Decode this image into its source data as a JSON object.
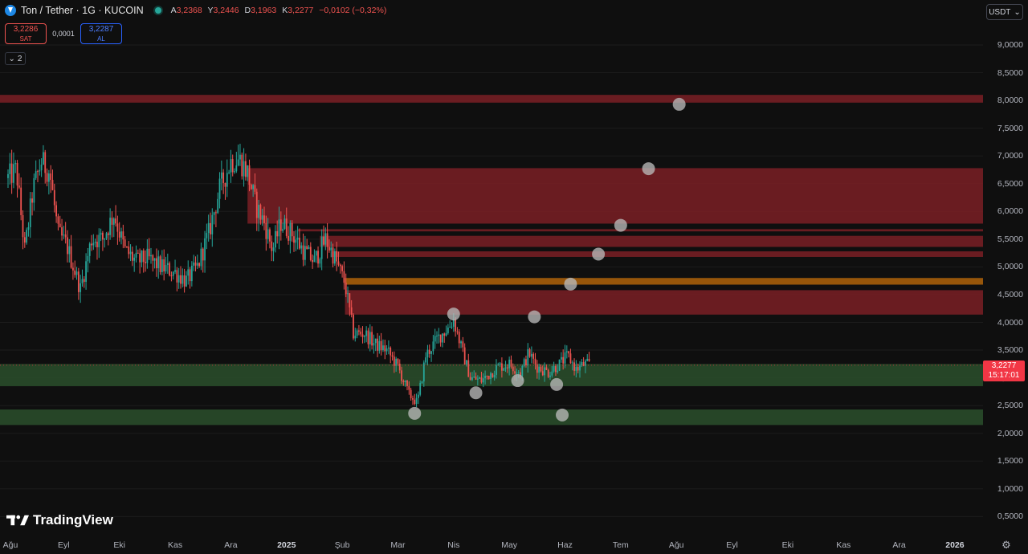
{
  "symbol": {
    "title": "Ton / Tether · 1G · KUCOIN",
    "ohlc": [
      {
        "key": "A",
        "value": "3,2368"
      },
      {
        "key": "Y",
        "value": "3,2446"
      },
      {
        "key": "D",
        "value": "3,1963"
      },
      {
        "key": "K",
        "value": "3,2277"
      }
    ],
    "change": "−0,0102 (−0,32%)"
  },
  "trade": {
    "sell_price": "3,2286",
    "sell_label": "SAT",
    "spread": "0,0001",
    "buy_price": "3,2287",
    "buy_label": "AL"
  },
  "indicators_count": "2",
  "currency": "USDT",
  "last_price": {
    "value": "3,2277",
    "countdown": "15:17:01"
  },
  "brand": "TradingView",
  "colors": {
    "up": "#26a69a",
    "down": "#ef5350",
    "background": "#0f0f0f",
    "resistance_zone": "#7a1f25",
    "support_zone": "#2a4f2c",
    "orange_zone": "#a65e0a",
    "marker": "#b8b8b8"
  },
  "chart_data": {
    "type": "candlestick",
    "ylim": [
      0.2,
      9.3
    ],
    "y_ticks": [
      "9,0000",
      "8,5000",
      "8,0000",
      "7,5000",
      "7,0000",
      "6,5000",
      "6,0000",
      "5,5000",
      "5,0000",
      "4,5000",
      "4,0000",
      "3,5000",
      "3,0000",
      "2,5000",
      "2,0000",
      "1,5000",
      "1,0000",
      "0,5000"
    ],
    "y_tick_values": [
      9,
      8.5,
      8,
      7.5,
      7,
      6.5,
      6,
      5.5,
      5,
      4.5,
      4,
      3.5,
      3,
      2.5,
      2,
      1.5,
      1,
      0.5
    ],
    "x_ticks": [
      {
        "label": "Ağu"
      },
      {
        "label": "Eyl"
      },
      {
        "label": "Eki"
      },
      {
        "label": "Kas"
      },
      {
        "label": "Ara"
      },
      {
        "label": "2025",
        "bold": true
      },
      {
        "label": "Şub"
      },
      {
        "label": "Mar"
      },
      {
        "label": "Nis"
      },
      {
        "label": "May"
      },
      {
        "label": "Haz"
      },
      {
        "label": "Tem"
      },
      {
        "label": "Ağu"
      },
      {
        "label": "Eyl"
      },
      {
        "label": "Eki"
      },
      {
        "label": "Kas"
      },
      {
        "label": "Ara"
      },
      {
        "label": "2026",
        "bold": true
      }
    ],
    "zones": [
      {
        "kind": "resistance",
        "from_month": 0,
        "low": 7.96,
        "high": 8.1
      },
      {
        "kind": "resistance",
        "from_month": 4.3,
        "low": 5.78,
        "high": 6.78
      },
      {
        "kind": "resistance",
        "from_month": 5.2,
        "low": 5.64,
        "high": 5.68
      },
      {
        "kind": "resistance",
        "from_month": 5.6,
        "low": 5.36,
        "high": 5.56
      },
      {
        "kind": "resistance",
        "from_month": 5.8,
        "low": 5.18,
        "high": 5.28
      },
      {
        "kind": "orange",
        "from_month": 6.05,
        "low": 4.68,
        "high": 4.8
      },
      {
        "kind": "resistance",
        "from_month": 6.05,
        "low": 4.14,
        "high": 4.58
      },
      {
        "kind": "support",
        "from_month": 0,
        "low": 2.85,
        "high": 3.25
      },
      {
        "kind": "support",
        "from_month": 0,
        "low": 2.15,
        "high": 2.43
      }
    ],
    "markers": [
      {
        "month": 7.3,
        "price": 2.36
      },
      {
        "month": 8.0,
        "price": 4.15
      },
      {
        "month": 8.4,
        "price": 2.73
      },
      {
        "month": 9.15,
        "price": 2.95
      },
      {
        "month": 9.45,
        "price": 4.1
      },
      {
        "month": 9.85,
        "price": 2.88
      },
      {
        "month": 9.95,
        "price": 2.33
      },
      {
        "month": 10.1,
        "price": 4.69
      },
      {
        "month": 10.6,
        "price": 5.23
      },
      {
        "month": 11.0,
        "price": 5.75
      },
      {
        "month": 11.5,
        "price": 6.77
      },
      {
        "month": 12.05,
        "price": 7.93
      }
    ],
    "price_path": [
      {
        "month": 0.0,
        "price": 6.6
      },
      {
        "month": 0.15,
        "price": 6.75
      },
      {
        "month": 0.3,
        "price": 5.3
      },
      {
        "month": 0.45,
        "price": 6.4
      },
      {
        "month": 0.6,
        "price": 6.9
      },
      {
        "month": 0.75,
        "price": 6.7
      },
      {
        "month": 0.9,
        "price": 5.6
      },
      {
        "month": 1.05,
        "price": 5.4
      },
      {
        "month": 1.3,
        "price": 4.6
      },
      {
        "month": 1.5,
        "price": 5.5
      },
      {
        "month": 1.7,
        "price": 5.5
      },
      {
        "month": 1.9,
        "price": 5.95
      },
      {
        "month": 2.1,
        "price": 5.3
      },
      {
        "month": 2.3,
        "price": 5.1
      },
      {
        "month": 2.5,
        "price": 5.15
      },
      {
        "month": 2.75,
        "price": 5.0
      },
      {
        "month": 3.0,
        "price": 4.9
      },
      {
        "month": 3.2,
        "price": 4.75
      },
      {
        "month": 3.4,
        "price": 5.0
      },
      {
        "month": 3.6,
        "price": 5.6
      },
      {
        "month": 3.8,
        "price": 6.4
      },
      {
        "month": 4.0,
        "price": 6.9
      },
      {
        "month": 4.15,
        "price": 6.95
      },
      {
        "month": 4.3,
        "price": 6.7
      },
      {
        "month": 4.45,
        "price": 6.1
      },
      {
        "month": 4.6,
        "price": 5.8
      },
      {
        "month": 4.75,
        "price": 5.3
      },
      {
        "month": 4.9,
        "price": 5.8
      },
      {
        "month": 5.1,
        "price": 5.6
      },
      {
        "month": 5.3,
        "price": 5.3
      },
      {
        "month": 5.5,
        "price": 5.1
      },
      {
        "month": 5.7,
        "price": 5.5
      },
      {
        "month": 5.85,
        "price": 5.2
      },
      {
        "month": 6.05,
        "price": 4.7
      },
      {
        "month": 6.2,
        "price": 3.8
      },
      {
        "month": 6.4,
        "price": 3.8
      },
      {
        "month": 6.6,
        "price": 3.6
      },
      {
        "month": 6.8,
        "price": 3.5
      },
      {
        "month": 7.0,
        "price": 3.2
      },
      {
        "month": 7.2,
        "price": 2.7
      },
      {
        "month": 7.35,
        "price": 2.55
      },
      {
        "month": 7.5,
        "price": 3.4
      },
      {
        "month": 7.7,
        "price": 3.7
      },
      {
        "month": 7.9,
        "price": 3.9
      },
      {
        "month": 8.0,
        "price": 4.05
      },
      {
        "month": 8.15,
        "price": 3.5
      },
      {
        "month": 8.3,
        "price": 3.0
      },
      {
        "month": 8.5,
        "price": 2.95
      },
      {
        "month": 8.8,
        "price": 3.2
      },
      {
        "month": 9.0,
        "price": 3.25
      },
      {
        "month": 9.2,
        "price": 3.1
      },
      {
        "month": 9.35,
        "price": 3.45
      },
      {
        "month": 9.5,
        "price": 3.2
      },
      {
        "month": 9.7,
        "price": 3.1
      },
      {
        "month": 9.9,
        "price": 3.25
      },
      {
        "month": 10.05,
        "price": 3.4
      },
      {
        "month": 10.2,
        "price": 3.15
      },
      {
        "month": 10.35,
        "price": 3.25
      },
      {
        "month": 10.45,
        "price": 3.2277
      }
    ]
  }
}
